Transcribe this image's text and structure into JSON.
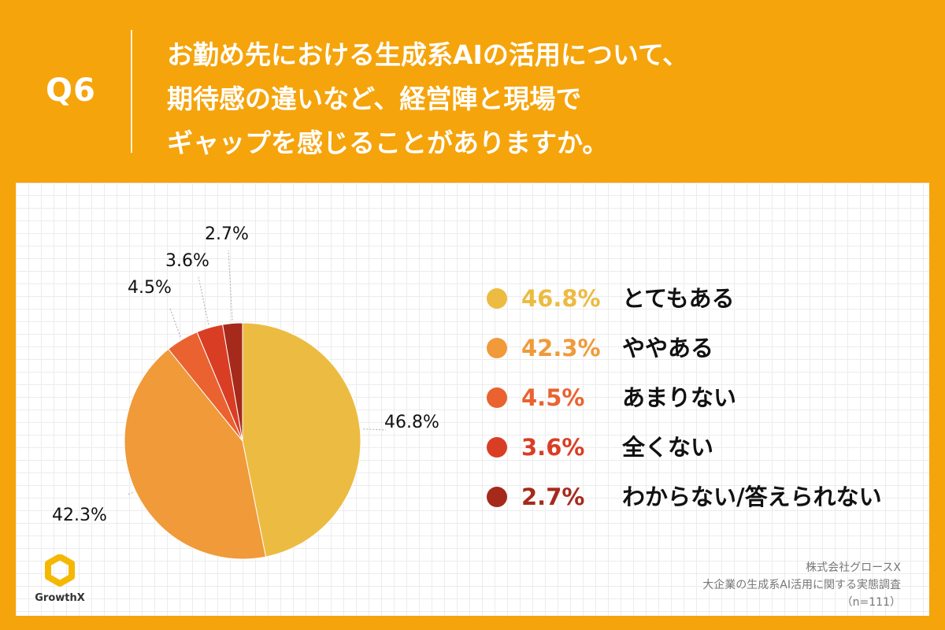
{
  "header": {
    "q_label": "Q6",
    "question_lines": [
      "お勤め先における生成系AIの活用について、",
      "期待感の違いなど、経営陣と現場で",
      "ギャップを感じることがありますか。"
    ]
  },
  "chart_data": {
    "type": "pie",
    "title": "お勤め先における生成系AIの活用について、期待感の違いなど、経営陣と現場でギャップを感じることがありますか。",
    "start": "12 o'clock",
    "direction": "clockwise",
    "slices": [
      {
        "label": "とてもある",
        "value": 46.8,
        "display": "46.8%",
        "color": "#ecbb41"
      },
      {
        "label": "ややある",
        "value": 42.3,
        "display": "42.3%",
        "color": "#f09a3a"
      },
      {
        "label": "あまりない",
        "value": 4.5,
        "display": "4.5%",
        "color": "#ea6230"
      },
      {
        "label": "全くない",
        "value": 3.6,
        "display": "3.6%",
        "color": "#d93e25"
      },
      {
        "label": "わからない/答えられない",
        "value": 2.7,
        "display": "2.7%",
        "color": "#a52a1c"
      }
    ]
  },
  "logo": {
    "text": "GrowthX",
    "color": "#f5b800"
  },
  "source": {
    "company": "株式会社グロースX",
    "survey": "大企業の生成系AI活用に関する実態調査",
    "sample": "（n=111）"
  }
}
